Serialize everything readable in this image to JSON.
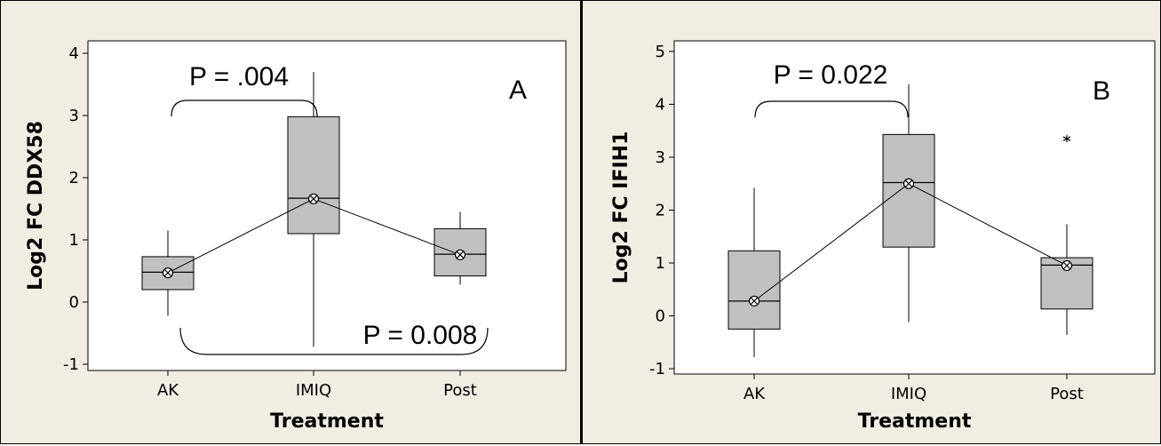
{
  "chart_data": [
    {
      "type": "box",
      "panel_label": "A",
      "xlabel": "Treatment",
      "ylabel": "Log2 FC DDX58",
      "categories": [
        "AK",
        "IMIQ",
        "Post"
      ],
      "ylim": [
        -1.1,
        4.2
      ],
      "yticks": [
        -1,
        0,
        1,
        2,
        3,
        4
      ],
      "ytick_labels": [
        "-1",
        "0",
        "1",
        "2",
        "3",
        "4"
      ],
      "boxes": [
        {
          "category": "AK",
          "whisker_low": -0.22,
          "q1": 0.2,
          "median": 0.48,
          "q3": 0.73,
          "whisker_high": 1.15
        },
        {
          "category": "IMIQ",
          "whisker_low": -0.72,
          "q1": 1.1,
          "median": 1.67,
          "q3": 2.98,
          "whisker_high": 3.7
        },
        {
          "category": "Post",
          "whisker_low": 0.28,
          "q1": 0.42,
          "median": 0.77,
          "q3": 1.18,
          "whisker_high": 1.45
        }
      ],
      "means": [
        0.47,
        1.66,
        0.76
      ],
      "outliers": [],
      "annotations": [
        {
          "text": "P = .004",
          "from": "AK",
          "to": "IMIQ",
          "placement": "top"
        },
        {
          "text": "P = 0.008",
          "from": "AK",
          "to": "Post",
          "placement": "bottom"
        }
      ],
      "grid": false
    },
    {
      "type": "box",
      "panel_label": "B",
      "xlabel": "Treatment",
      "ylabel": "Log2 FC IFIH1",
      "categories": [
        "AK",
        "IMIQ",
        "Post"
      ],
      "ylim": [
        -1.1,
        5.2
      ],
      "yticks": [
        -1,
        0,
        1,
        2,
        3,
        4,
        5
      ],
      "ytick_labels": [
        "-1",
        "0",
        "1",
        "2",
        "3",
        "4",
        "5"
      ],
      "boxes": [
        {
          "category": "AK",
          "whisker_low": -0.78,
          "q1": -0.25,
          "median": 0.28,
          "q3": 1.23,
          "whisker_high": 2.42
        },
        {
          "category": "IMIQ",
          "whisker_low": -0.12,
          "q1": 1.3,
          "median": 2.52,
          "q3": 3.43,
          "whisker_high": 4.38
        },
        {
          "category": "Post",
          "whisker_low": -0.36,
          "q1": 0.13,
          "median": 0.96,
          "q3": 1.1,
          "whisker_high": 1.73
        }
      ],
      "means": [
        0.28,
        2.5,
        0.95
      ],
      "outliers": [
        {
          "category": "Post",
          "value": 3.35
        }
      ],
      "annotations": [
        {
          "text": "P = 0.022",
          "from": "AK",
          "to": "IMIQ",
          "placement": "top"
        }
      ],
      "grid": false
    }
  ],
  "colors": {
    "panel_bg": "#f1ede3",
    "plot_bg": "#ffffff",
    "box_fill": "#c0c0c0",
    "line": "#000000"
  }
}
